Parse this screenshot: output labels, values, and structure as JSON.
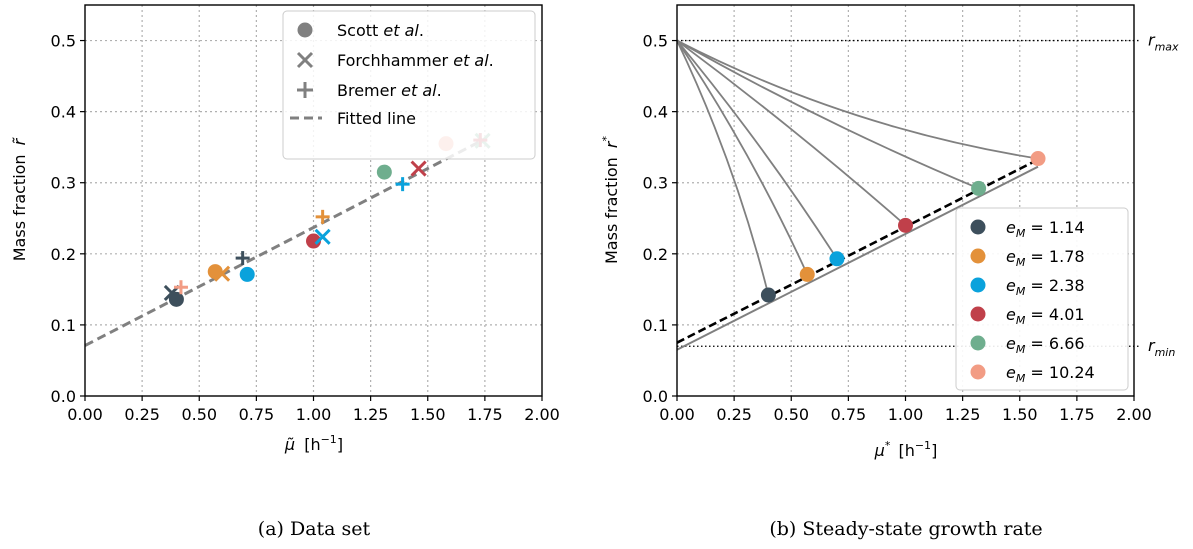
{
  "chart_data": [
    {
      "type": "scatter",
      "panel": "(a)",
      "caption": "(a)  Data set",
      "xlabel_symbol": "μ̃",
      "xlabel_unit": "[h",
      "xlabel_exp": "−1",
      "xlabel_close": "]",
      "ylabel_text": "Mass fraction",
      "ylabel_symbol": "r̃",
      "xlim": [
        0,
        2.0
      ],
      "ylim": [
        0,
        0.55
      ],
      "xticks": [
        0,
        0.25,
        0.5,
        0.75,
        1.0,
        1.25,
        1.5,
        1.75,
        2.0
      ],
      "xtick_labels": [
        "0.00",
        "0.25",
        "0.50",
        "0.75",
        "1.00",
        "1.25",
        "1.50",
        "1.75",
        "2.00"
      ],
      "yticks": [
        0,
        0.1,
        0.2,
        0.3,
        0.4,
        0.5
      ],
      "ytick_labels": [
        "0.0",
        "0.1",
        "0.2",
        "0.3",
        "0.4",
        "0.5"
      ],
      "grid": true,
      "legend_position": "top-right",
      "legend": [
        {
          "marker": "circle",
          "label": "Scott ",
          "label_italic": "et al",
          "label_end": "."
        },
        {
          "marker": "x",
          "label": "Forchhammer ",
          "label_italic": "et al",
          "label_end": "."
        },
        {
          "marker": "plus",
          "label": "Bremer ",
          "label_italic": "et al",
          "label_end": "."
        },
        {
          "marker": "dashed-line",
          "label": "Fitted line",
          "label_italic": "",
          "label_end": ""
        }
      ],
      "fitted_line": {
        "intercept": 0.071,
        "slope": 0.166,
        "x_range": [
          0,
          1.75
        ],
        "color": "#808080"
      },
      "series": [
        {
          "source": "Scott",
          "marker": "circle",
          "points": [
            {
              "x": 0.4,
              "y": 0.136,
              "color": "#3d4f5c"
            },
            {
              "x": 0.57,
              "y": 0.175,
              "color": "#e3913a"
            },
            {
              "x": 0.71,
              "y": 0.171,
              "color": "#0aa2dc"
            },
            {
              "x": 1.0,
              "y": 0.218,
              "color": "#c0404a"
            },
            {
              "x": 1.31,
              "y": 0.315,
              "color": "#6fae8e"
            },
            {
              "x": 1.58,
              "y": 0.355,
              "color": "#f29c84"
            }
          ]
        },
        {
          "source": "Forchhammer",
          "marker": "x",
          "points": [
            {
              "x": 0.38,
              "y": 0.145,
              "color": "#3d4f5c"
            },
            {
              "x": 0.6,
              "y": 0.172,
              "color": "#e3913a"
            },
            {
              "x": 1.04,
              "y": 0.224,
              "color": "#0aa2dc"
            },
            {
              "x": 1.46,
              "y": 0.32,
              "color": "#c0404a"
            },
            {
              "x": 1.74,
              "y": 0.359,
              "color": "#6fae8e"
            }
          ]
        },
        {
          "source": "Bremer",
          "marker": "plus",
          "points": [
            {
              "x": 0.42,
              "y": 0.153,
              "color": "#f29c84"
            },
            {
              "x": 0.69,
              "y": 0.194,
              "color": "#3d4f5c"
            },
            {
              "x": 1.04,
              "y": 0.252,
              "color": "#e3913a"
            },
            {
              "x": 1.39,
              "y": 0.298,
              "color": "#0aa2dc"
            },
            {
              "x": 1.73,
              "y": 0.36,
              "color": "#c0404a"
            }
          ]
        }
      ]
    },
    {
      "type": "line",
      "panel": "(b)",
      "caption": "(b)  Steady-state growth rate",
      "xlabel_symbol": "μ",
      "xlabel_sup": "*",
      "xlabel_unit": "[h",
      "xlabel_exp": "−1",
      "xlabel_close": "]",
      "ylabel_text": "Mass fraction",
      "ylabel_symbol": "r",
      "ylabel_sup": "*",
      "xlim": [
        0,
        2.0
      ],
      "ylim": [
        0,
        0.55
      ],
      "xticks": [
        0,
        0.25,
        0.5,
        0.75,
        1.0,
        1.25,
        1.5,
        1.75,
        2.0
      ],
      "xtick_labels": [
        "0.00",
        "0.25",
        "0.50",
        "0.75",
        "1.00",
        "1.25",
        "1.50",
        "1.75",
        "2.00"
      ],
      "yticks": [
        0,
        0.1,
        0.2,
        0.3,
        0.4,
        0.5
      ],
      "ytick_labels": [
        "0.0",
        "0.1",
        "0.2",
        "0.3",
        "0.4",
        "0.5"
      ],
      "grid": true,
      "legend_position": "lower-right",
      "r_max": {
        "value": 0.5,
        "label": "r",
        "sub": "max"
      },
      "r_min": {
        "value": 0.07,
        "label": "r",
        "sub": "min"
      },
      "dashed_line": {
        "intercept": 0.075,
        "slope": 0.163,
        "x_range": [
          0,
          1.58
        ],
        "color": "#000000"
      },
      "gray_line": {
        "intercept": 0.065,
        "slope": 0.163,
        "x_range": [
          0,
          1.58
        ],
        "color": "#808080"
      },
      "origin_point": {
        "x": 0.0,
        "y": 0.5
      },
      "points": [
        {
          "e_M": "1.14",
          "x": 0.4,
          "y": 0.142,
          "color": "#3d4f5c",
          "bend": -0.05
        },
        {
          "e_M": "1.78",
          "x": 0.57,
          "y": 0.171,
          "color": "#e3913a",
          "bend": -0.04
        },
        {
          "e_M": "2.38",
          "x": 0.7,
          "y": 0.193,
          "color": "#0aa2dc",
          "bend": -0.03
        },
        {
          "e_M": "4.01",
          "x": 1.0,
          "y": 0.24,
          "color": "#c0404a",
          "bend": -0.02
        },
        {
          "e_M": "6.66",
          "x": 1.32,
          "y": 0.292,
          "color": "#6fae8e",
          "bend": 0.03
        },
        {
          "e_M": "10.24",
          "x": 1.58,
          "y": 0.334,
          "color": "#f29c84",
          "bend": 0.08
        }
      ],
      "legend_label_var": "e",
      "legend_label_sub": "M",
      "legend_label_eq": " = "
    }
  ]
}
